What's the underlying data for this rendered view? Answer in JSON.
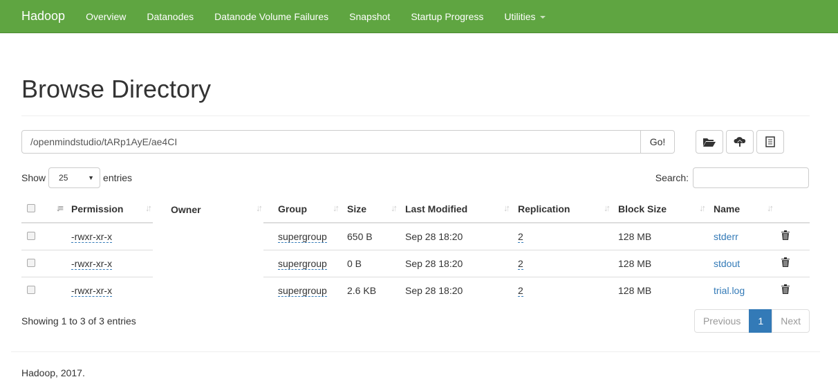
{
  "nav": {
    "brand": "Hadoop",
    "items": [
      "Overview",
      "Datanodes",
      "Datanode Volume Failures",
      "Snapshot",
      "Startup Progress",
      "Utilities"
    ]
  },
  "title": "Browse Directory",
  "path": {
    "value": "/openmindstudio/tARp1AyE/ae4CI",
    "go": "Go!"
  },
  "toolbar": {
    "icons": [
      "folder-open-icon",
      "cloud-upload-icon",
      "list-icon"
    ]
  },
  "length": {
    "show": "Show",
    "value": "25",
    "entries": "entries"
  },
  "search": {
    "label": "Search:",
    "value": ""
  },
  "columns": [
    "Permission",
    "Owner",
    "Group",
    "Size",
    "Last Modified",
    "Replication",
    "Block Size",
    "Name"
  ],
  "rows": [
    {
      "permission": "-rwxr-xr-x",
      "owner": "",
      "group": "supergroup",
      "size": "650 B",
      "modified": "Sep 28 18:20",
      "replication": "2",
      "block": "128 MB",
      "name": "stderr"
    },
    {
      "permission": "-rwxr-xr-x",
      "owner": "",
      "group": "supergroup",
      "size": "0 B",
      "modified": "Sep 28 18:20",
      "replication": "2",
      "block": "128 MB",
      "name": "stdout"
    },
    {
      "permission": "-rwxr-xr-x",
      "owner": "",
      "group": "supergroup",
      "size": "2.6 KB",
      "modified": "Sep 28 18:20",
      "replication": "2",
      "block": "128 MB",
      "name": "trial.log"
    }
  ],
  "info": "Showing 1 to 3 of 3 entries",
  "pagination": {
    "previous": "Previous",
    "current": "1",
    "next": "Next"
  },
  "footer": "Hadoop, 2017.",
  "colors": {
    "navbar": "#5fa541",
    "link": "#337ab7"
  }
}
